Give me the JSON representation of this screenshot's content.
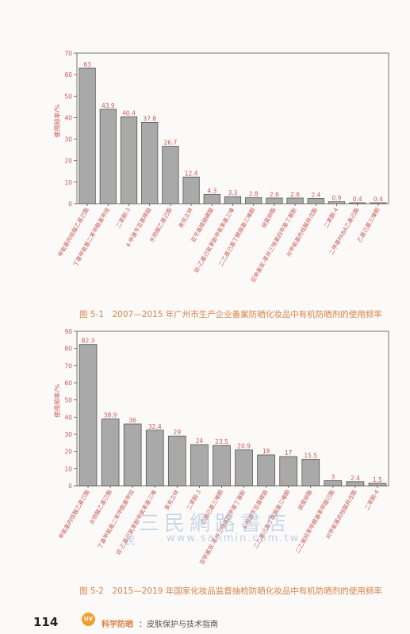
{
  "chart_data": [
    {
      "type": "bar",
      "ylabel": "使用频率/%",
      "ylim": [
        0,
        70
      ],
      "yticks": [
        0,
        10,
        20,
        30,
        40,
        50,
        60,
        70
      ],
      "categories": [
        "甲氧基肉桂酸乙基己酯",
        "丁基甲氧基二苯甲酰基甲烷",
        "二苯酮-3",
        "4-甲基苄亚基樟脑",
        "水杨酸乙基己酯",
        "奥克立林",
        "亚苄基樟脑磺酸",
        "双-乙基己氧苯酚甲氧苯基三嗪",
        "二乙基己基丁酰胺基三嗪酮",
        "胡莫柳酯",
        "亚甲基双-苯并三唑基四甲基丁基酚",
        "对甲氧基肉桂酸异戊酯",
        "二苯酮-4",
        "二甲基PABA乙基己酯",
        "乙基己基三嗪酮"
      ],
      "values": [
        63,
        43.9,
        40.4,
        37.8,
        26.7,
        12.4,
        4.3,
        3.3,
        2.8,
        2.6,
        2.6,
        2.4,
        0.9,
        0.4,
        0.4
      ],
      "value_labels": [
        "63",
        "43.9",
        "40.4",
        "37.8",
        "26.7",
        "12.4",
        "4.3",
        "3.3",
        "2.8",
        "2.6",
        "2.6",
        "2.4",
        "0.9",
        "0.4",
        "0.4"
      ]
    },
    {
      "type": "bar",
      "ylabel": "使用频率/%",
      "ylim": [
        0,
        90
      ],
      "yticks": [
        0,
        10,
        20,
        30,
        40,
        50,
        60,
        70,
        80,
        90
      ],
      "categories": [
        "甲氧基肉桂酸乙基己酯",
        "水杨酸乙基己酯",
        "丁基甲氧基二苯甲酰基甲烷",
        "双-乙基己氧苯酚甲氧苯基三嗪",
        "奥克立林",
        "二苯酮-3",
        "乙基己基三嗪酮",
        "亚甲基双-苯并三唑基四甲基丁基酚",
        "4-甲基苄亚基樟脑",
        "二乙基己基丁酰胺基三嗪酮",
        "胡莫柳酯",
        "二乙氨羟苯甲酰基苯甲酸己酯",
        "对甲氧基肉桂酸异戊酯",
        "二苯酮-4"
      ],
      "values": [
        82.3,
        38.9,
        36,
        32.4,
        29,
        24,
        23.5,
        20.9,
        18,
        17,
        15.5,
        3,
        2.4,
        1.5
      ],
      "value_labels": [
        "82.3",
        "38.9",
        "36",
        "32.4",
        "29",
        "24",
        "23.5",
        "20.9",
        "18",
        "17",
        "15.5",
        "3",
        "2.4",
        "1.5"
      ]
    }
  ],
  "captions": {
    "fig1": "图 5-1　2007—2015 年广州市生产企业备案防晒化妆品中有机防晒剂的使用频率",
    "fig2": "图 5-2　2015—2019 年国家化妆品监督抽检防晒化妆品中有机防晒剂的使用频率"
  },
  "footer": {
    "page_number": "114",
    "logo_text": "UV",
    "book_title": "科学防晒",
    "book_subtitle": "：皮肤保护与技术指南"
  },
  "watermark": {
    "chinese": "三民網路書店",
    "min_char": "民",
    "url": "www.sanmin.com.tw"
  },
  "colors": {
    "bar_fill": "#a9a9a9",
    "bar_stroke": "#555555",
    "label_red": "#c85a5a",
    "caption": "#d9834a"
  }
}
